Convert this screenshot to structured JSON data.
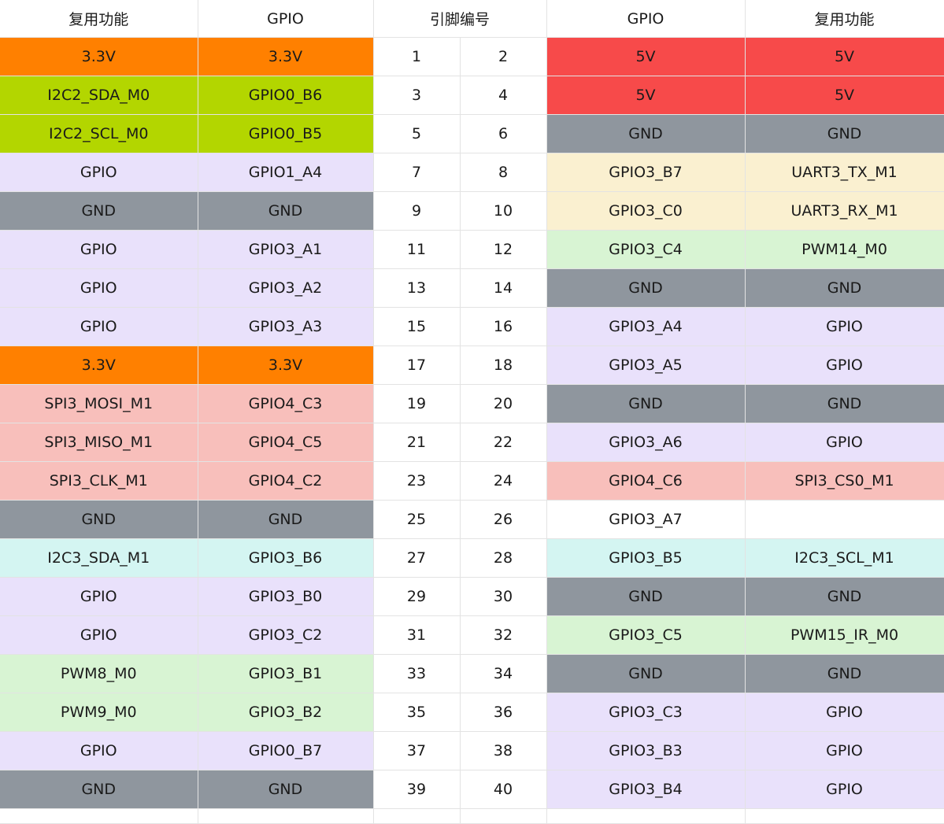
{
  "header": {
    "left_func": "复用功能",
    "left_gpio": "GPIO",
    "pin_num": "引脚编号",
    "right_gpio": "GPIO",
    "right_func": "复用功能"
  },
  "rows": [
    {
      "lf": "3.3V",
      "lg": "3.3V",
      "lc": "c-33v",
      "p1": "1",
      "p2": "2",
      "rg": "5V",
      "rf": "5V",
      "rgc": "c-5v",
      "rfc": "c-5v"
    },
    {
      "lf": "I2C2_SDA_M0",
      "lg": "GPIO0_B6",
      "lc": "c-i2c2",
      "p1": "3",
      "p2": "4",
      "rg": "5V",
      "rf": "5V",
      "rgc": "c-5v",
      "rfc": "c-5v"
    },
    {
      "lf": "I2C2_SCL_M0",
      "lg": "GPIO0_B5",
      "lc": "c-i2c2",
      "p1": "5",
      "p2": "6",
      "rg": "GND",
      "rf": "GND",
      "rgc": "c-gnd",
      "rfc": "c-gnd"
    },
    {
      "lf": "GPIO",
      "lg": "GPIO1_A4",
      "lc": "c-gpio",
      "p1": "7",
      "p2": "8",
      "rg": "GPIO3_B7",
      "rf": "UART3_TX_M1",
      "rgc": "c-uart",
      "rfc": "c-uart"
    },
    {
      "lf": "GND",
      "lg": "GND",
      "lc": "c-gnd",
      "p1": "9",
      "p2": "10",
      "rg": "GPIO3_C0",
      "rf": "UART3_RX_M1",
      "rgc": "c-uart",
      "rfc": "c-uart"
    },
    {
      "lf": "GPIO",
      "lg": "GPIO3_A1",
      "lc": "c-gpio",
      "p1": "11",
      "p2": "12",
      "rg": "GPIO3_C4",
      "rf": "PWM14_M0",
      "rgc": "c-pwm",
      "rfc": "c-pwm"
    },
    {
      "lf": "GPIO",
      "lg": "GPIO3_A2",
      "lc": "c-gpio",
      "p1": "13",
      "p2": "14",
      "rg": "GND",
      "rf": "GND",
      "rgc": "c-gnd",
      "rfc": "c-gnd"
    },
    {
      "lf": "GPIO",
      "lg": "GPIO3_A3",
      "lc": "c-gpio",
      "p1": "15",
      "p2": "16",
      "rg": "GPIO3_A4",
      "rf": "GPIO",
      "rgc": "c-gpio",
      "rfc": "c-gpio"
    },
    {
      "lf": "3.3V",
      "lg": "3.3V",
      "lc": "c-33v",
      "p1": "17",
      "p2": "18",
      "rg": "GPIO3_A5",
      "rf": "GPIO",
      "rgc": "c-gpio",
      "rfc": "c-gpio"
    },
    {
      "lf": "SPI3_MOSI_M1",
      "lg": "GPIO4_C3",
      "lc": "c-spi",
      "p1": "19",
      "p2": "20",
      "rg": "GND",
      "rf": "GND",
      "rgc": "c-gnd",
      "rfc": "c-gnd"
    },
    {
      "lf": "SPI3_MISO_M1",
      "lg": "GPIO4_C5",
      "lc": "c-spi",
      "p1": "21",
      "p2": "22",
      "rg": "GPIO3_A6",
      "rf": "GPIO",
      "rgc": "c-gpio",
      "rfc": "c-gpio"
    },
    {
      "lf": "SPI3_CLK_M1",
      "lg": "GPIO4_C2",
      "lc": "c-spi",
      "p1": "23",
      "p2": "24",
      "rg": "GPIO4_C6",
      "rf": "SPI3_CS0_M1",
      "rgc": "c-spi",
      "rfc": "c-spi"
    },
    {
      "lf": "GND",
      "lg": "GND",
      "lc": "c-gnd",
      "p1": "25",
      "p2": "26",
      "rg": "GPIO3_A7",
      "rf": "",
      "rgc": "c-none",
      "rfc": "c-none"
    },
    {
      "lf": "I2C3_SDA_M1",
      "lg": "GPIO3_B6",
      "lc": "c-i2c3",
      "p1": "27",
      "p2": "28",
      "rg": "GPIO3_B5",
      "rf": "I2C3_SCL_M1",
      "rgc": "c-i2c3",
      "rfc": "c-i2c3"
    },
    {
      "lf": "GPIO",
      "lg": "GPIO3_B0",
      "lc": "c-gpio",
      "p1": "29",
      "p2": "30",
      "rg": "GND",
      "rf": "GND",
      "rgc": "c-gnd",
      "rfc": "c-gnd"
    },
    {
      "lf": "GPIO",
      "lg": "GPIO3_C2",
      "lc": "c-gpio",
      "p1": "31",
      "p2": "32",
      "rg": "GPIO3_C5",
      "rf": "PWM15_IR_M0",
      "rgc": "c-pwm",
      "rfc": "c-pwm"
    },
    {
      "lf": "PWM8_M0",
      "lg": "GPIO3_B1",
      "lc": "c-pwm",
      "p1": "33",
      "p2": "34",
      "rg": "GND",
      "rf": "GND",
      "rgc": "c-gnd",
      "rfc": "c-gnd"
    },
    {
      "lf": "PWM9_M0",
      "lg": "GPIO3_B2",
      "lc": "c-pwm",
      "p1": "35",
      "p2": "36",
      "rg": "GPIO3_C3",
      "rf": "GPIO",
      "rgc": "c-gpio",
      "rfc": "c-gpio"
    },
    {
      "lf": "GPIO",
      "lg": "GPIO0_B7",
      "lc": "c-gpio",
      "p1": "37",
      "p2": "38",
      "rg": "GPIO3_B3",
      "rf": "GPIO",
      "rgc": "c-gpio",
      "rfc": "c-gpio"
    },
    {
      "lf": "GND",
      "lg": "GND",
      "lc": "c-gnd",
      "p1": "39",
      "p2": "40",
      "rg": "GPIO3_B4",
      "rf": "GPIO",
      "rgc": "c-gpio",
      "rfc": "c-gpio"
    }
  ]
}
